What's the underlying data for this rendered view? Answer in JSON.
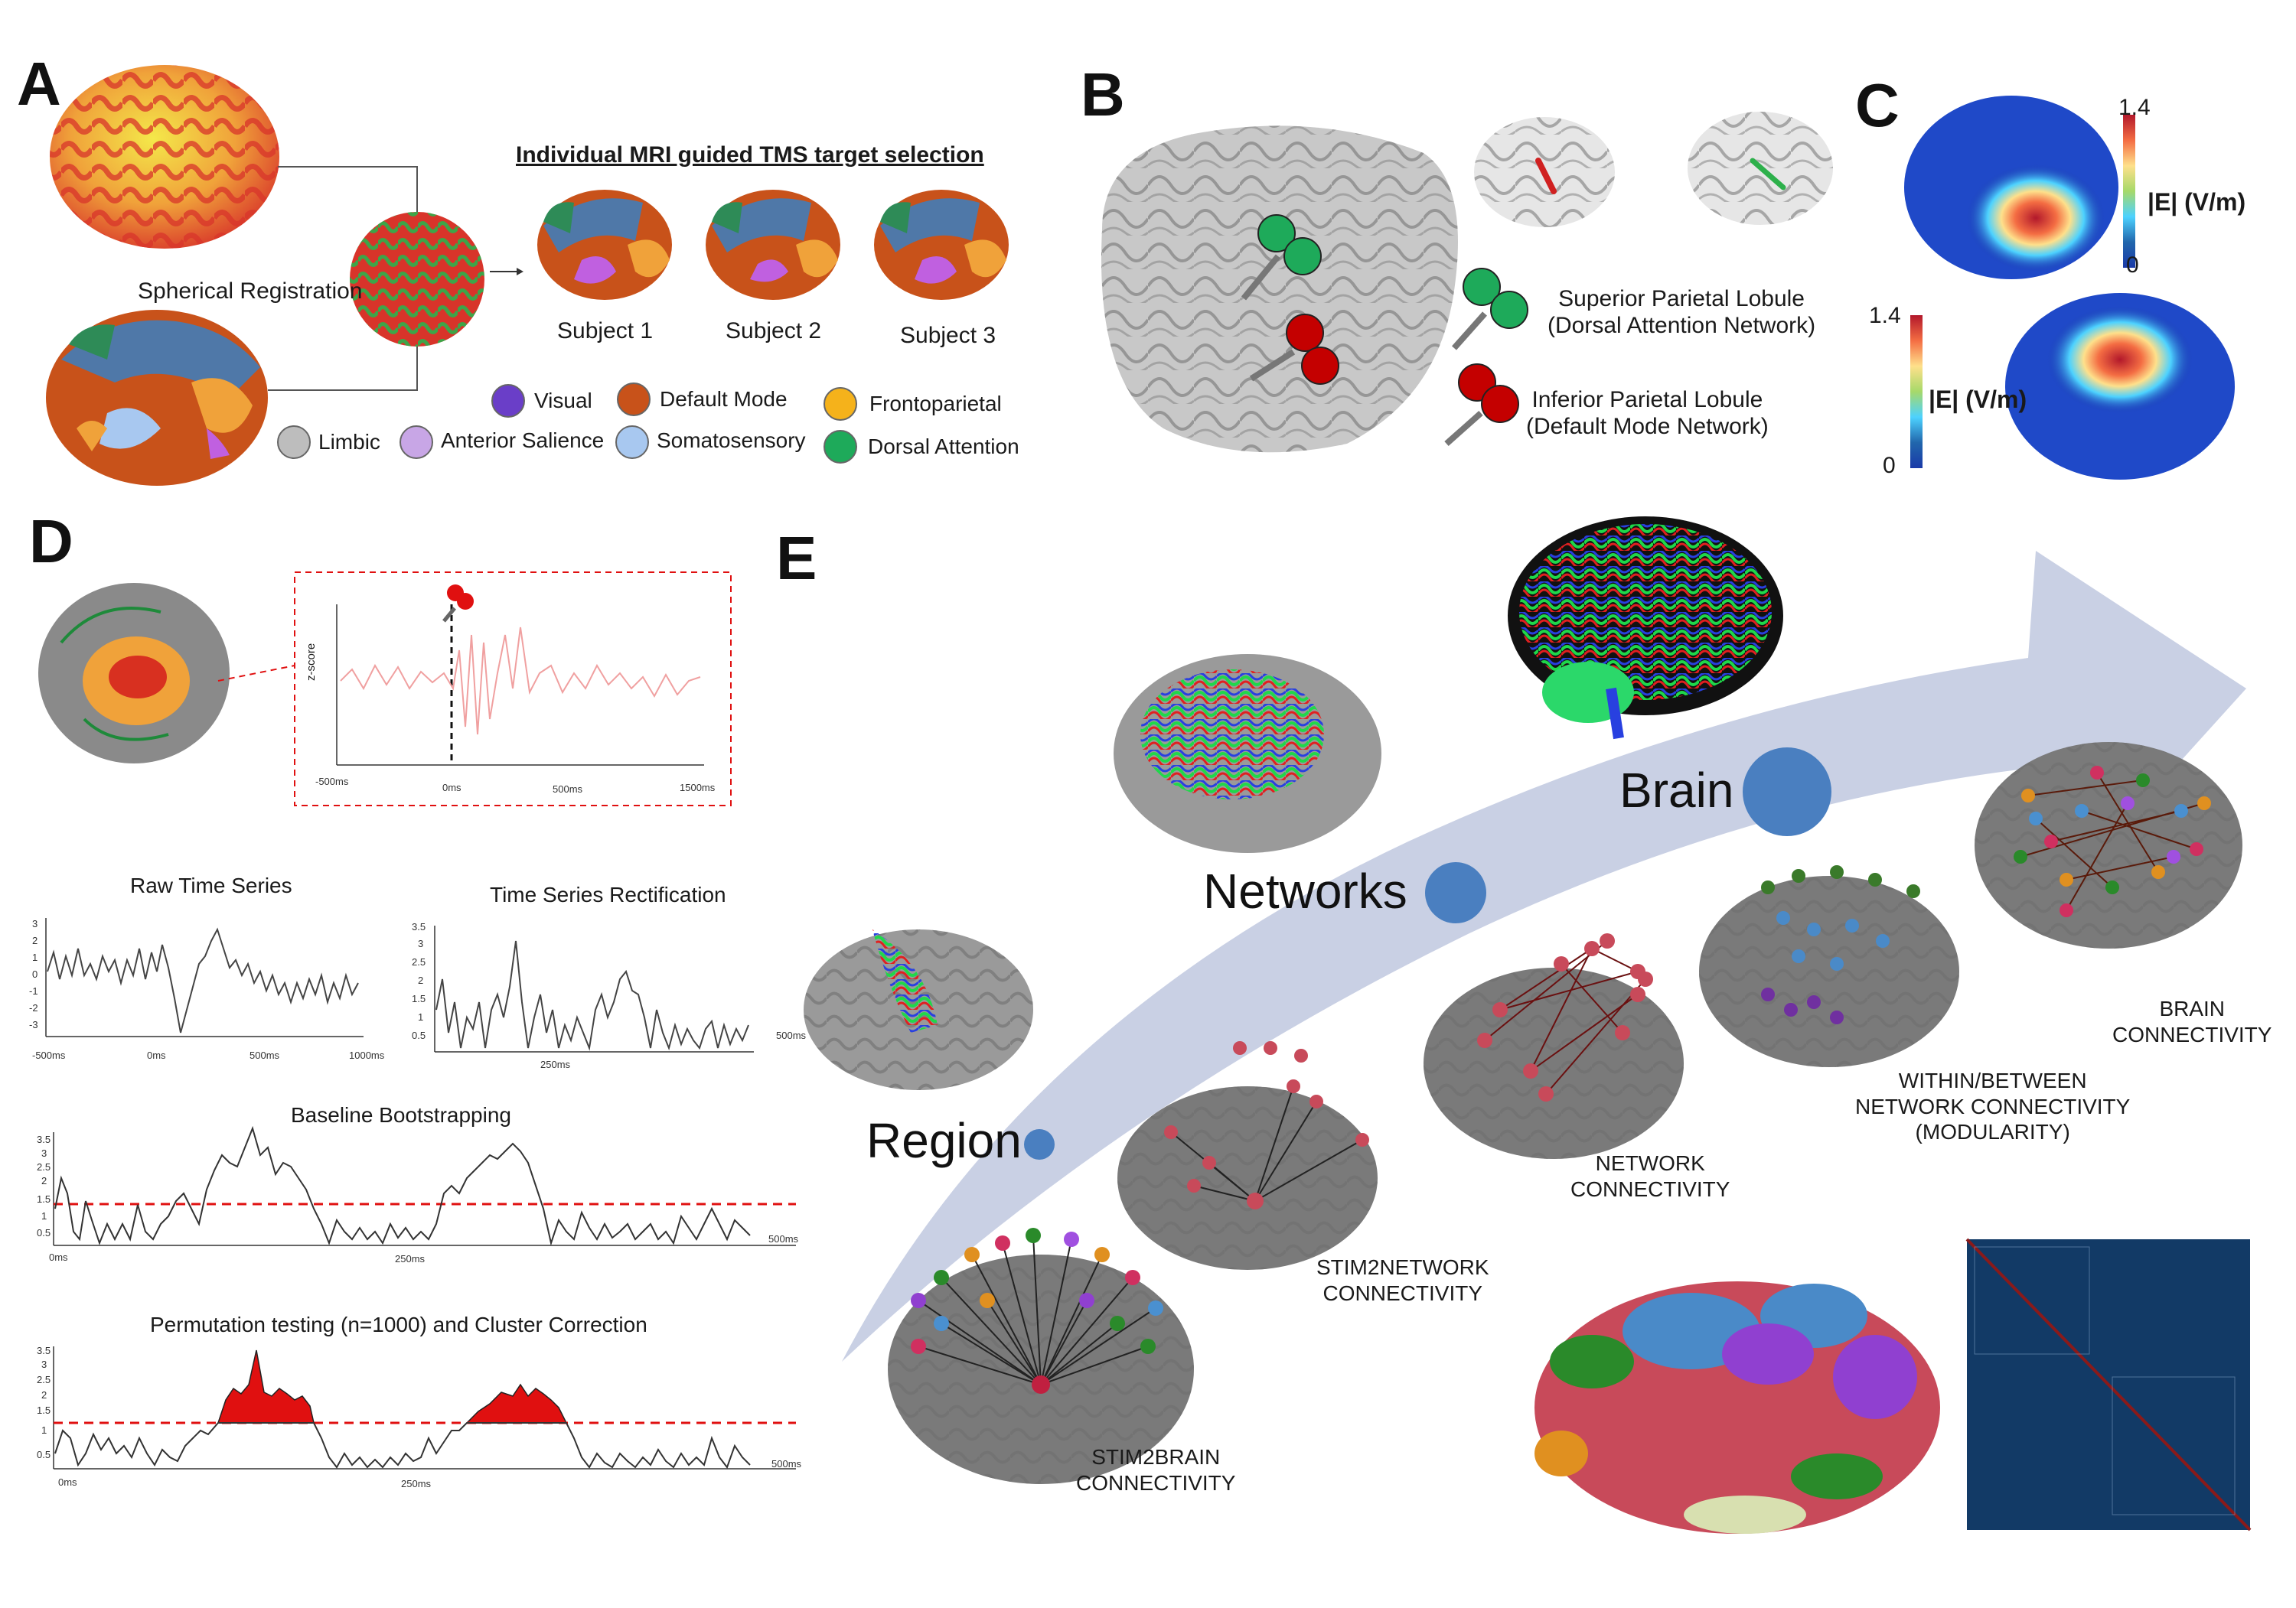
{
  "panels": {
    "a": "A",
    "b": "B",
    "c": "C",
    "d": "D",
    "e": "E"
  },
  "panel_a": {
    "spherical_registration": "Spherical Registration",
    "title": "Individual MRI guided TMS target selection",
    "subjects": [
      "Subject 1",
      "Subject 2",
      "Subject 3"
    ],
    "legend": [
      {
        "label": "Visual",
        "color": "#6a3ec8"
      },
      {
        "label": "Default Mode",
        "color": "#c8521a"
      },
      {
        "label": "Frontoparietal",
        "color": "#f5b21b"
      },
      {
        "label": "Limbic",
        "color": "#bdbdbd"
      },
      {
        "label": "Anterior Salience",
        "color": "#c8a6e6"
      },
      {
        "label": "Somatosensory",
        "color": "#a8c8f0"
      },
      {
        "label": "Dorsal Attention",
        "color": "#1eaa5a"
      }
    ]
  },
  "panel_b": {
    "spl_line1": "Superior Parietal Lobule",
    "spl_line2": "(Dorsal Attention Network)",
    "ipl_line1": "Inferior Parietal Lobule",
    "ipl_line2": "(Default Mode Network)",
    "spl_color": "#1eaa5a",
    "ipl_color": "#c40000"
  },
  "panel_c": {
    "max": "1.4",
    "min": "0",
    "unit": "|E| (V/m)"
  },
  "panel_d": {
    "zscore_label": "z-score",
    "top_ticks": [
      "-500ms",
      "0ms",
      "500ms",
      "1500ms"
    ],
    "raw": {
      "title": "Raw Time Series",
      "y_ticks": [
        "3",
        "2",
        "1",
        "0",
        "-1",
        "-2",
        "-3"
      ],
      "x_ticks": [
        "-500ms",
        "0ms",
        "500ms",
        "1000ms"
      ]
    },
    "rect": {
      "title": "Time Series Rectification",
      "y_ticks": [
        "3.5",
        "3",
        "2.5",
        "2",
        "1.5",
        "1",
        "0.5"
      ],
      "x_ticks": [
        "250ms"
      ],
      "side_tick": "500ms"
    },
    "boot": {
      "title": "Baseline Bootstrapping",
      "y_ticks": [
        "3.5",
        "3",
        "2.5",
        "2",
        "1.5",
        "1",
        "0.5"
      ],
      "x_ticks": [
        "0ms",
        "250ms",
        "500ms"
      ]
    },
    "perm": {
      "title": "Permutation testing (n=1000) and Cluster Correction",
      "y_ticks": [
        "3.5",
        "3",
        "2.5",
        "2",
        "1.5",
        "1",
        "0.5"
      ],
      "x_ticks": [
        "0ms",
        "250ms",
        "500ms"
      ]
    },
    "threshold_color": "#e01010"
  },
  "panel_e": {
    "stages": {
      "region": "Region",
      "networks": "Networks",
      "brain": "Brain"
    },
    "captions": {
      "stim2brain": [
        "STIM2BRAIN",
        "CONNECTIVITY"
      ],
      "stim2network": [
        "STIM2NETWORK",
        "CONNECTIVITY"
      ],
      "network": [
        "NETWORK",
        "CONNECTIVITY"
      ],
      "within_between": [
        "WITHIN/BETWEEN",
        "NETWORK CONNECTIVITY",
        "(MODULARITY)"
      ],
      "brain": [
        "BRAIN",
        "CONNECTIVITY"
      ]
    },
    "arrow_color": "#c9d0e4",
    "stage_dot_color": "#4a7fc0"
  }
}
